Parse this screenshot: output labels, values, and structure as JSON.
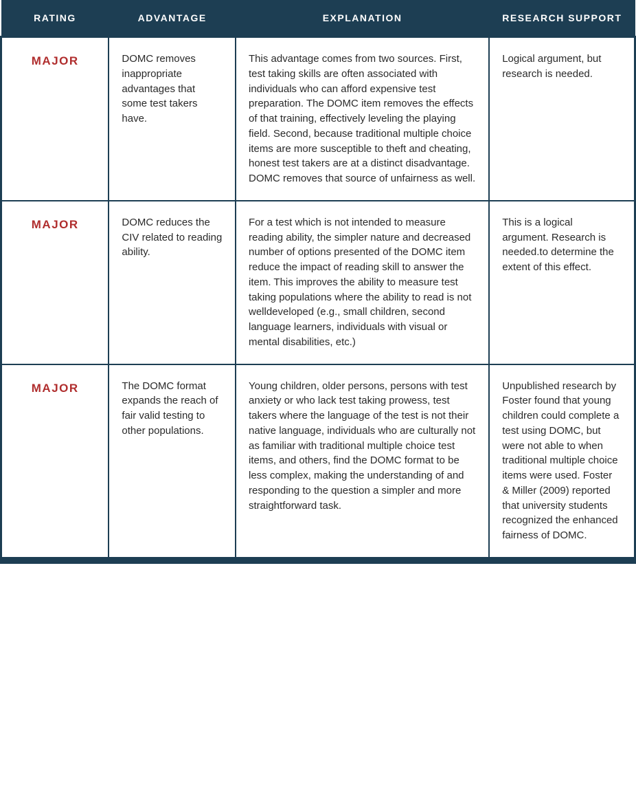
{
  "table": {
    "header_bg": "#1d3e53",
    "header_text_color": "#ffffff",
    "border_color": "#1d3e53",
    "cell_bg": "#ffffff",
    "rating_color": "#b02e2e",
    "body_text_color": "#2a2a2a",
    "header_fontsize": 14,
    "body_fontsize": 15,
    "rating_fontsize": 17,
    "bottom_border_width": 10,
    "bottom_radius": 14,
    "columns": [
      {
        "key": "rating",
        "label": "RATING",
        "width_pct": 17
      },
      {
        "key": "advantage",
        "label": "ADVANTAGE",
        "width_pct": 20
      },
      {
        "key": "explanation",
        "label": "EXPLANATION",
        "width_pct": 40
      },
      {
        "key": "research",
        "label": "RESEARCH SUPPORT",
        "width_pct": 23
      }
    ],
    "rows": [
      {
        "rating": "MAJOR",
        "advantage": "DOMC removes inappropriate advantages that some test takers have.",
        "explanation": "This advantage comes from two sources. First, test taking skills are often associated with individuals who can afford expensive test preparation. The DOMC item removes the effects of that training, effectively leveling the playing field. Second, because traditional multiple choice items are more susceptible to theft and cheating, honest test takers are at a distinct disadvantage. DOMC removes that source of unfairness as well.",
        "research": "Logical argument, but research is needed."
      },
      {
        "rating": "MAJOR",
        "advantage": "DOMC reduces the CIV related to reading ability.",
        "explanation": "For a test which is not intended to measure reading ability, the simpler nature and decreased number of options presented of the DOMC item reduce the impact of reading skill to answer the item. This improves the ability to measure test taking populations where the ability to read is not welldeveloped (e.g., small children, second language learners, individuals with visual or mental disabilities, etc.)",
        "research": "This is a logical argument. Research is needed.to determine the extent of this effect."
      },
      {
        "rating": "MAJOR",
        "advantage": "The DOMC format expands the reach of fair valid testing to other populations.",
        "explanation": "Young children, older persons, persons with test anxiety or who lack test taking prowess, test takers where the language of the test is not their native language, individuals who are culturally not as familiar with traditional multiple choice test items, and others, find the DOMC format to be less complex, making the understanding of and responding to the question a simpler and more straightforward task.",
        "research": "Unpublished research by Foster found that young children could complete a test using DOMC, but were not able to when traditional multiple choice items were used. Foster & Miller (2009) reported that university students recognized the enhanced fairness of DOMC."
      }
    ]
  }
}
